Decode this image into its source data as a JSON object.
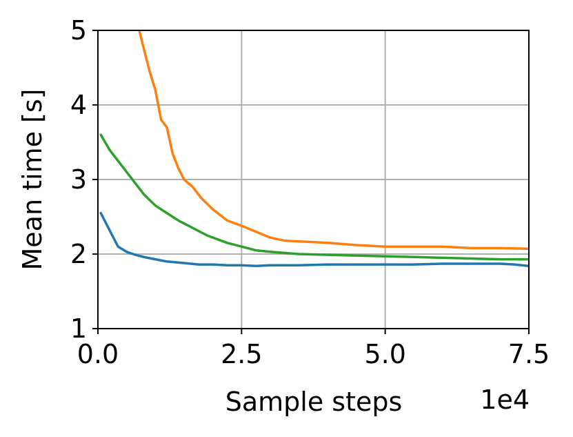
{
  "chart_data": {
    "type": "line",
    "title": "",
    "xlabel": "Sample steps",
    "ylabel": "Mean time [s]",
    "x_offset_label": "1e4",
    "xlim": [
      0,
      75000
    ],
    "ylim": [
      1,
      5
    ],
    "xticks": [
      0,
      25000,
      50000,
      75000
    ],
    "xtick_labels": [
      "0.0",
      "2.5",
      "5.0",
      "7.5"
    ],
    "yticks": [
      1,
      2,
      3,
      4,
      5
    ],
    "ytick_labels": [
      "1",
      "2",
      "3",
      "4",
      "5"
    ],
    "grid": true,
    "legend": "none",
    "series": [
      {
        "color": "#1f77b4",
        "x": [
          500,
          1500,
          2500,
          3500,
          5000,
          6500,
          8000,
          10000,
          12000,
          15000,
          17500,
          20000,
          22500,
          25000,
          27500,
          30000,
          32500,
          35000,
          40000,
          45000,
          50000,
          55000,
          60000,
          65000,
          70000,
          72500,
          75000
        ],
        "y": [
          2.55,
          2.4,
          2.25,
          2.1,
          2.03,
          1.99,
          1.96,
          1.93,
          1.9,
          1.88,
          1.86,
          1.86,
          1.85,
          1.85,
          1.84,
          1.85,
          1.85,
          1.85,
          1.86,
          1.86,
          1.86,
          1.86,
          1.87,
          1.87,
          1.87,
          1.86,
          1.84
        ]
      },
      {
        "color": "#ff7f0e",
        "x": [
          7200,
          8000,
          9000,
          10000,
          11000,
          12000,
          13000,
          14000,
          15000,
          16500,
          18000,
          20000,
          22500,
          25000,
          27500,
          30000,
          32500,
          35000,
          40000,
          45000,
          50000,
          55000,
          60000,
          65000,
          70000,
          75000
        ],
        "y": [
          5.0,
          4.75,
          4.45,
          4.2,
          3.8,
          3.7,
          3.35,
          3.15,
          3.0,
          2.9,
          2.75,
          2.6,
          2.45,
          2.38,
          2.3,
          2.22,
          2.18,
          2.17,
          2.15,
          2.12,
          2.1,
          2.1,
          2.1,
          2.08,
          2.08,
          2.07
        ]
      },
      {
        "color": "#2ca02c",
        "x": [
          500,
          2000,
          3500,
          5000,
          6500,
          8000,
          10000,
          12000,
          14000,
          16500,
          19000,
          22500,
          25000,
          27500,
          30000,
          35000,
          40000,
          45000,
          50000,
          55000,
          60000,
          65000,
          70000,
          75000
        ],
        "y": [
          3.6,
          3.4,
          3.25,
          3.1,
          2.95,
          2.8,
          2.65,
          2.55,
          2.45,
          2.35,
          2.25,
          2.15,
          2.1,
          2.05,
          2.03,
          2.0,
          1.99,
          1.98,
          1.97,
          1.96,
          1.95,
          1.94,
          1.93,
          1.93
        ]
      }
    ]
  }
}
